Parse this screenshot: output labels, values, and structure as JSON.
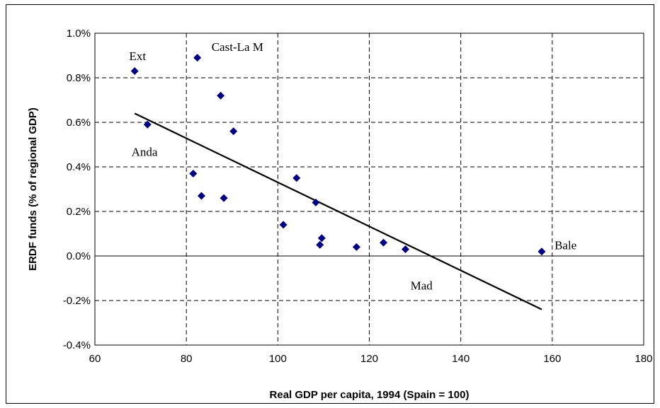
{
  "chart_data": {
    "type": "scatter",
    "title": "",
    "xlabel": "Real GDP per capita, 1994 (Spain = 100)",
    "ylabel": "ERDF funds (% of regional GDP)",
    "xlim": [
      60,
      180
    ],
    "ylim": [
      -0.4,
      1.0
    ],
    "x_ticks": [
      60,
      80,
      100,
      120,
      140,
      160,
      180
    ],
    "x_tick_labels": [
      "60",
      "80",
      "100",
      "120",
      "140",
      "160",
      "180"
    ],
    "y_ticks": [
      -0.4,
      -0.2,
      0.0,
      0.2,
      0.4,
      0.6,
      0.8,
      1.0
    ],
    "y_tick_labels": [
      "-0.4%",
      "-0.2%",
      "0.0%",
      "0.2%",
      "0.4%",
      "0.6%",
      "0.8%",
      "1.0%"
    ],
    "grid": true,
    "marker": "diamond",
    "colors": {
      "points": "#00007F",
      "trendline": "#000000",
      "grid": "#000000"
    },
    "points": [
      {
        "x": 68.7,
        "y": 0.83
      },
      {
        "x": 71.5,
        "y": 0.59
      },
      {
        "x": 81.5,
        "y": 0.37
      },
      {
        "x": 82.4,
        "y": 0.89
      },
      {
        "x": 83.3,
        "y": 0.27
      },
      {
        "x": 87.5,
        "y": 0.72
      },
      {
        "x": 88.2,
        "y": 0.26
      },
      {
        "x": 90.3,
        "y": 0.56
      },
      {
        "x": 101.2,
        "y": 0.14
      },
      {
        "x": 104.1,
        "y": 0.35
      },
      {
        "x": 108.3,
        "y": 0.24
      },
      {
        "x": 109.2,
        "y": 0.05
      },
      {
        "x": 109.6,
        "y": 0.08
      },
      {
        "x": 117.2,
        "y": 0.04
      },
      {
        "x": 123.1,
        "y": 0.06
      },
      {
        "x": 127.9,
        "y": 0.03
      },
      {
        "x": 157.7,
        "y": 0.02
      }
    ],
    "trendline": {
      "x": [
        68.7,
        157.7
      ],
      "y": [
        0.64,
        -0.24
      ]
    },
    "annotations": [
      {
        "text": "Ext",
        "x": 67.5,
        "y": 0.88
      },
      {
        "text": "Cast-La M",
        "x": 85.5,
        "y": 0.92
      },
      {
        "text": "Anda",
        "x": 68.0,
        "y": 0.45
      },
      {
        "text": "Bale",
        "x": 160.5,
        "y": 0.03
      },
      {
        "text": "Mad",
        "x": 129.0,
        "y": -0.15
      }
    ]
  }
}
